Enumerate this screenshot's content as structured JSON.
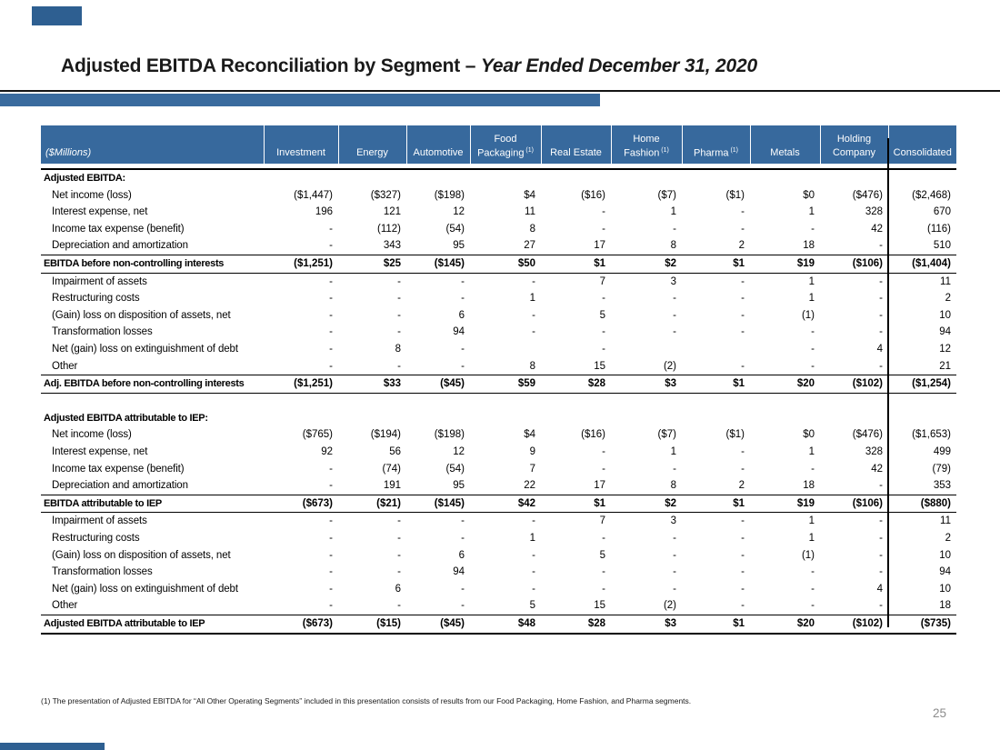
{
  "slide": {
    "title_main": "Adjusted EBITDA Reconciliation by Segment – ",
    "title_italic": "Year Ended December 31, 2020",
    "footnote": "(1) The presentation of Adjusted EBITDA for “All Other Operating Segments” included in this presentation consists of results from our Food Packaging, Home Fashion, and Pharma segments.",
    "page_number": "25"
  },
  "colors": {
    "header_blue": "#37699D",
    "accent_bar_blue": "#3A6B9E",
    "corner_mark_blue": "#2E5F91",
    "page_number_gray": "#8C8C8C",
    "table_border_black": "#000000"
  },
  "table": {
    "unit_label": "($Millions)",
    "columns": [
      {
        "lines": [
          "Investment"
        ],
        "sup": ""
      },
      {
        "lines": [
          "Energy"
        ],
        "sup": ""
      },
      {
        "lines": [
          "Automotive"
        ],
        "sup": ""
      },
      {
        "lines": [
          "Food",
          "Packaging"
        ],
        "sup": "(1)"
      },
      {
        "lines": [
          "Real Estate"
        ],
        "sup": ""
      },
      {
        "lines": [
          "Home",
          "Fashion"
        ],
        "sup": "(1)"
      },
      {
        "lines": [
          "Pharma"
        ],
        "sup": "(1)"
      },
      {
        "lines": [
          "Metals"
        ],
        "sup": ""
      },
      {
        "lines": [
          "Holding",
          "Company"
        ],
        "sup": ""
      },
      {
        "lines": [
          "Consolidated"
        ],
        "sup": ""
      }
    ],
    "rows": [
      {
        "type": "section",
        "label": "Adjusted EBITDA:",
        "values": [
          "",
          "",
          "",
          "",
          "",
          "",
          "",
          "",
          "",
          ""
        ]
      },
      {
        "type": "data",
        "label": "Net income (loss)",
        "values": [
          "($1,447)",
          "($327)",
          "($198)",
          "$4",
          "($16)",
          "($7)",
          "($1)",
          "$0",
          "($476)",
          "($2,468)"
        ]
      },
      {
        "type": "data",
        "label": "Interest expense, net",
        "values": [
          "196",
          "121",
          "12",
          "11",
          "-",
          "1",
          "-",
          "1",
          "328",
          "670"
        ]
      },
      {
        "type": "data",
        "label": "Income tax expense (benefit)",
        "values": [
          "-",
          "(112)",
          "(54)",
          "8",
          "-",
          "-",
          "-",
          "-",
          "42",
          "(116)"
        ]
      },
      {
        "type": "data",
        "label": "Depreciation and amortization",
        "values": [
          "-",
          "343",
          "95",
          "27",
          "17",
          "8",
          "2",
          "18",
          "-",
          "510"
        ]
      },
      {
        "type": "total",
        "label": "EBITDA before non-controlling interests",
        "values": [
          "($1,251)",
          "$25",
          "($145)",
          "$50",
          "$1",
          "$2",
          "$1",
          "$19",
          "($106)",
          "($1,404)"
        ]
      },
      {
        "type": "data",
        "label": "Impairment of assets",
        "values": [
          "-",
          "-",
          "-",
          "-",
          "7",
          "3",
          "-",
          "1",
          "-",
          "11"
        ]
      },
      {
        "type": "data",
        "label": "Restructuring costs",
        "values": [
          "-",
          "-",
          "-",
          "1",
          "-",
          "-",
          "-",
          "1",
          "-",
          "2"
        ]
      },
      {
        "type": "data",
        "label": "(Gain) loss on disposition of assets, net",
        "values": [
          "-",
          "-",
          "6",
          "-",
          "5",
          "-",
          "-",
          "(1)",
          "-",
          "10"
        ]
      },
      {
        "type": "data",
        "label": "Transformation losses",
        "values": [
          "-",
          "-",
          "94",
          "-",
          "-",
          "-",
          "-",
          "-",
          "-",
          "94"
        ]
      },
      {
        "type": "data",
        "label": "Net (gain) loss on extinguishment of debt",
        "values": [
          "-",
          "8",
          "-",
          "",
          "-",
          "",
          "",
          "-",
          "4",
          "12"
        ]
      },
      {
        "type": "data",
        "label": "Other",
        "values": [
          "-",
          "-",
          "-",
          "8",
          "15",
          "(2)",
          "-",
          "-",
          "-",
          "21"
        ]
      },
      {
        "type": "total",
        "label": "Adj. EBITDA before non-controlling interests",
        "values": [
          "($1,251)",
          "$33",
          "($45)",
          "$59",
          "$28",
          "$3",
          "$1",
          "$20",
          "($102)",
          "($1,254)"
        ]
      },
      {
        "type": "spacer",
        "label": "",
        "values": [
          "",
          "",
          "",
          "",
          "",
          "",
          "",
          "",
          "",
          ""
        ]
      },
      {
        "type": "section",
        "label": "Adjusted EBITDA attributable to IEP:",
        "values": [
          "",
          "",
          "",
          "",
          "",
          "",
          "",
          "",
          "",
          ""
        ]
      },
      {
        "type": "data",
        "label": "Net income (loss)",
        "values": [
          "($765)",
          "($194)",
          "($198)",
          "$4",
          "($16)",
          "($7)",
          "($1)",
          "$0",
          "($476)",
          "($1,653)"
        ]
      },
      {
        "type": "data",
        "label": "Interest expense, net",
        "values": [
          "92",
          "56",
          "12",
          "9",
          "-",
          "1",
          "-",
          "1",
          "328",
          "499"
        ]
      },
      {
        "type": "data",
        "label": "Income tax expense (benefit)",
        "values": [
          "-",
          "(74)",
          "(54)",
          "7",
          "-",
          "-",
          "-",
          "-",
          "42",
          "(79)"
        ]
      },
      {
        "type": "data",
        "label": "Depreciation and amortization",
        "values": [
          "-",
          "191",
          "95",
          "22",
          "17",
          "8",
          "2",
          "18",
          "-",
          "353"
        ]
      },
      {
        "type": "total",
        "label": "EBITDA attributable to IEP",
        "values": [
          "($673)",
          "($21)",
          "($145)",
          "$42",
          "$1",
          "$2",
          "$1",
          "$19",
          "($106)",
          "($880)"
        ]
      },
      {
        "type": "data",
        "label": "Impairment of assets",
        "values": [
          "-",
          "-",
          "-",
          "-",
          "7",
          "3",
          "-",
          "1",
          "-",
          "11"
        ]
      },
      {
        "type": "data",
        "label": "Restructuring costs",
        "values": [
          "-",
          "-",
          "-",
          "1",
          "-",
          "-",
          "-",
          "1",
          "-",
          "2"
        ]
      },
      {
        "type": "data",
        "label": "(Gain) loss on disposition of assets, net",
        "values": [
          "-",
          "-",
          "6",
          "-",
          "5",
          "-",
          "-",
          "(1)",
          "-",
          "10"
        ]
      },
      {
        "type": "data",
        "label": "Transformation losses",
        "values": [
          "-",
          "-",
          "94",
          "-",
          "-",
          "-",
          "-",
          "-",
          "-",
          "94"
        ]
      },
      {
        "type": "data",
        "label": "Net (gain) loss on extinguishment of debt",
        "values": [
          "-",
          "6",
          "-",
          "-",
          "-",
          "-",
          "-",
          "-",
          "4",
          "10"
        ]
      },
      {
        "type": "data",
        "label": "Other",
        "values": [
          "-",
          "-",
          "-",
          "5",
          "15",
          "(2)",
          "-",
          "-",
          "-",
          "18"
        ]
      },
      {
        "type": "total",
        "final": true,
        "label": "Adjusted EBITDA attributable to IEP",
        "values": [
          "($673)",
          "($15)",
          "($45)",
          "$48",
          "$28",
          "$3",
          "$1",
          "$20",
          "($102)",
          "($735)"
        ]
      }
    ]
  }
}
